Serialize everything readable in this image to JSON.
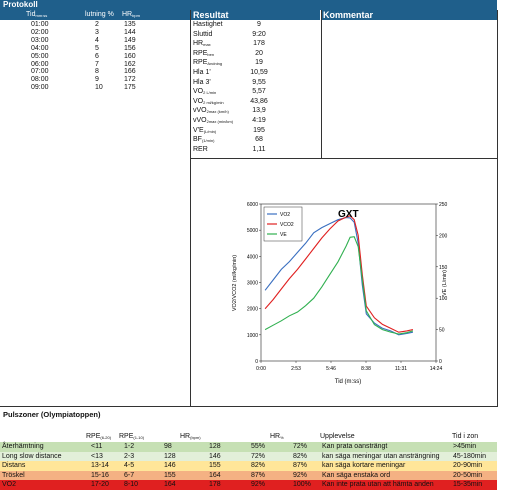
{
  "protokoll": {
    "title": "Protokoll",
    "col_time": "Tid",
    "col_time_sub": "mm:ss",
    "col_incline": "lutning %",
    "col_hr": "HR",
    "col_hr_sub": "bpm",
    "rows": [
      {
        "time": "01:00",
        "incline": "2",
        "hr": "135"
      },
      {
        "time": "02:00",
        "incline": "3",
        "hr": "144"
      },
      {
        "time": "03:00",
        "incline": "4",
        "hr": "149"
      },
      {
        "time": "04:00",
        "incline": "5",
        "hr": "156"
      },
      {
        "time": "05:00",
        "incline": "6",
        "hr": "160"
      },
      {
        "time": "06:00",
        "incline": "7",
        "hr": "162"
      },
      {
        "time": "07:00",
        "incline": "8",
        "hr": "166"
      },
      {
        "time": "08:00",
        "incline": "9",
        "hr": "172"
      },
      {
        "time": "09:00",
        "incline": "10",
        "hr": "175"
      }
    ]
  },
  "resultat": {
    "title": "Resultat",
    "rows": [
      {
        "label": "Hastighet",
        "sub": "",
        "value": "9"
      },
      {
        "label": "Sluttid",
        "sub": "",
        "value": "9:20"
      },
      {
        "label": "HR",
        "sub": "max",
        "value": "178"
      },
      {
        "label": "RPE",
        "sub": "ben",
        "value": "20"
      },
      {
        "label": "RPE",
        "sub": "Andning",
        "value": "19"
      },
      {
        "label": "Hla 1'",
        "sub": "",
        "value": "10,59"
      },
      {
        "label": "Hla 3'",
        "sub": "",
        "value": "9,55"
      },
      {
        "label": "VO",
        "sub": "2 L/min",
        "value": "5,57"
      },
      {
        "label": "VO",
        "sub": "2 ml/kg/min",
        "value": "43,86"
      },
      {
        "label": "vVO",
        "sub": "2max (km/h)",
        "value": "13,9"
      },
      {
        "label": "vVO",
        "sub": "2max (min/km)",
        "value": "4:19"
      },
      {
        "label": "V'E",
        "sub": "(L/min)",
        "value": "195"
      },
      {
        "label": "BF",
        "sub": "(1/min)",
        "value": "68"
      },
      {
        "label": "RER",
        "sub": "",
        "value": "1,11"
      }
    ]
  },
  "kommentar": {
    "title": "Kommentar"
  },
  "chart_data": {
    "type": "line",
    "title": "GXT",
    "xlabel": "Tid (m:ss)",
    "ylabel": "VO2/VCO2 (ml/kg/min)",
    "y2label": "VE (L/min)",
    "xticks": [
      "0:00",
      "2:53",
      "5:46",
      "8:38",
      "11:31",
      "14:24"
    ],
    "xlim": [
      0,
      864
    ],
    "ylim": [
      0,
      6000
    ],
    "yticks": [
      0,
      1000,
      2000,
      3000,
      4000,
      5000,
      6000
    ],
    "y2lim": [
      0,
      250
    ],
    "y2ticks": [
      0,
      50,
      100,
      150,
      200,
      250
    ],
    "legend_position": "top-left",
    "series": [
      {
        "name": "VO2",
        "color": "#3a6fc0",
        "axis": "left",
        "x": [
          20,
          60,
          100,
          140,
          180,
          220,
          260,
          300,
          340,
          380,
          420,
          440,
          460,
          480,
          500,
          520,
          560,
          600,
          640,
          680,
          720,
          750
        ],
        "y": [
          2700,
          3100,
          3500,
          3800,
          4150,
          4500,
          4900,
          5100,
          5250,
          5400,
          5480,
          5470,
          5300,
          4500,
          2900,
          1800,
          1450,
          1250,
          1150,
          1000,
          1050,
          1100
        ]
      },
      {
        "name": "VCO2",
        "color": "#e02020",
        "axis": "left",
        "x": [
          20,
          60,
          100,
          140,
          180,
          220,
          260,
          300,
          340,
          380,
          420,
          440,
          460,
          480,
          500,
          520,
          560,
          600,
          640,
          680,
          720,
          750
        ],
        "y": [
          2000,
          2350,
          2750,
          3150,
          3500,
          3900,
          4300,
          4700,
          5050,
          5350,
          5500,
          5550,
          5400,
          4800,
          3300,
          2100,
          1650,
          1400,
          1250,
          1100,
          1150,
          1200
        ]
      },
      {
        "name": "VE",
        "color": "#30b050",
        "axis": "right",
        "x": [
          20,
          60,
          100,
          140,
          180,
          220,
          260,
          300,
          340,
          380,
          420,
          440,
          460,
          480,
          500,
          520,
          560,
          600,
          640,
          680,
          720,
          750
        ],
        "y": [
          50,
          57,
          64,
          72,
          78,
          88,
          100,
          118,
          138,
          158,
          183,
          197,
          198,
          182,
          130,
          80,
          58,
          50,
          46,
          43,
          45,
          48
        ]
      }
    ]
  },
  "pulszoner": {
    "title": "Pulszoner (Olympiatoppen)",
    "headers": {
      "rpe_a": "RPE",
      "rpe_a_sub": "(6-20)",
      "rpe_b": "RPE",
      "rpe_b_sub": "(1-10)",
      "hr": "HR",
      "hr_sub": "(bpm)",
      "hrpct": "HR",
      "hrpct_sub": "%",
      "upplevelse": "Upplevelse",
      "tid": "Tid i zon"
    },
    "rows": [
      {
        "name": "Återhämtning",
        "rpe_a": "<11",
        "rpe_b": "1-2",
        "hr_lo": "98",
        "hr_hi": "128",
        "pct_lo": "55%",
        "pct_hi": "72%",
        "upplevelse": "Kan prata oansträngt",
        "tid": ">45min",
        "bg": "#c6e0b4"
      },
      {
        "name": "Long slow distance",
        "rpe_a": "<13",
        "rpe_b": "2-3",
        "hr_lo": "128",
        "hr_hi": "146",
        "pct_lo": "72%",
        "pct_hi": "82%",
        "upplevelse": "kan säga meningar utan ansträngning",
        "tid": "45-180min",
        "bg": "#e2efd9"
      },
      {
        "name": "Distans",
        "rpe_a": "13-14",
        "rpe_b": "4-5",
        "hr_lo": "146",
        "hr_hi": "155",
        "pct_lo": "82%",
        "pct_hi": "87%",
        "upplevelse": "kan säga kortare meningar",
        "tid": "20-90min",
        "bg": "#ffe699"
      },
      {
        "name": "Tröskel",
        "rpe_a": "15-16",
        "rpe_b": "6-7",
        "hr_lo": "155",
        "hr_hi": "164",
        "pct_lo": "87%",
        "pct_hi": "92%",
        "upplevelse": "Kan säga enstaka ord",
        "tid": "20-50min",
        "bg": "#f4b183"
      },
      {
        "name": "VO2",
        "rpe_a": "17-20",
        "rpe_b": "8-10",
        "hr_lo": "164",
        "hr_hi": "178",
        "pct_lo": "92%",
        "pct_hi": "100%",
        "upplevelse": "Kan inte prata utan att hämta anden",
        "tid": "15-35min",
        "bg": "#e02020"
      }
    ]
  }
}
